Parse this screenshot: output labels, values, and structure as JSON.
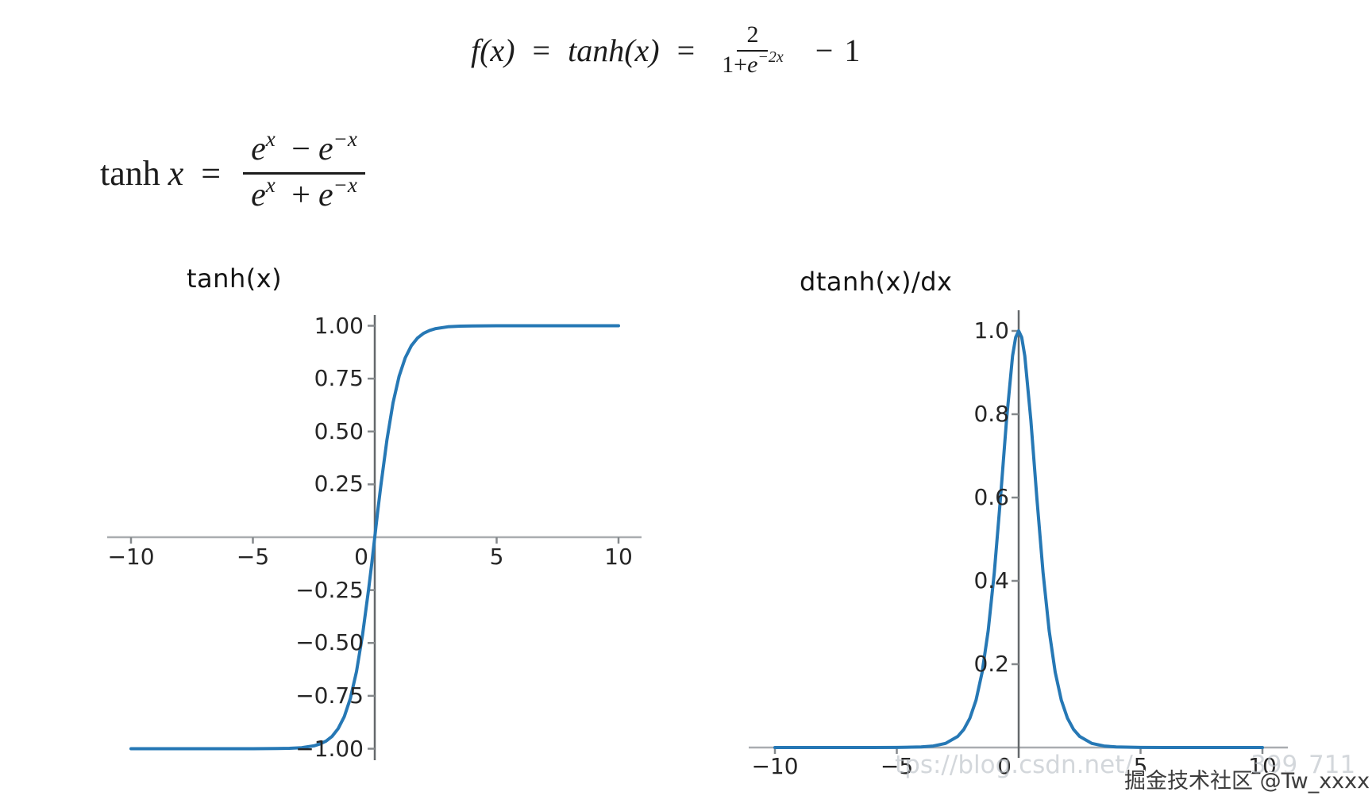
{
  "page": {
    "background": "#ffffff"
  },
  "formula1": {
    "lhs": "f(x)",
    "eq1": "=",
    "mid": "tanh(x)",
    "eq2": "=",
    "frac_num": "2",
    "frac_den_pre": "1+",
    "frac_den_e": "e",
    "frac_den_exp": "−2x",
    "tail_op": "−",
    "tail": "1"
  },
  "formula2": {
    "lhs": "tanh",
    "lhs_var": "x",
    "eq": "=",
    "num_e1": "e",
    "num_exp1": "x",
    "num_op": "−",
    "num_e2": "e",
    "num_exp2": "−x",
    "den_e1": "e",
    "den_exp1": "x",
    "den_op": "+",
    "den_e2": "e",
    "den_exp2": "−x"
  },
  "chart_data": [
    {
      "type": "line",
      "title": "tanh(x)",
      "xlabel": "",
      "ylabel": "",
      "xlim": [
        -11,
        11
      ],
      "ylim": [
        -1.06,
        1.05
      ],
      "grid": false,
      "legend": "none",
      "line_color": "#2678b5",
      "x_tick_values": [
        -10,
        -5,
        0,
        5,
        10
      ],
      "x_tick_labels": [
        "−10",
        "−5",
        "0",
        "5",
        "10"
      ],
      "y_tick_values": [
        1.0,
        0.75,
        0.5,
        0.25,
        -0.25,
        -0.5,
        -0.75,
        -1.0
      ],
      "y_tick_labels": [
        "1.00",
        "0.75",
        "0.50",
        "0.25",
        "−0.25",
        "−0.50",
        "−0.75",
        "−1.00"
      ],
      "series": [
        {
          "name": "tanh",
          "x": [
            -10,
            -9,
            -8,
            -7,
            -6,
            -5,
            -4,
            -3.5,
            -3,
            -2.5,
            -2.25,
            -2,
            -1.75,
            -1.5,
            -1.25,
            -1,
            -0.75,
            -0.5,
            -0.25,
            -0.125,
            0,
            0.125,
            0.25,
            0.5,
            0.75,
            1,
            1.25,
            1.5,
            1.75,
            2,
            2.25,
            2.5,
            3,
            3.5,
            4,
            5,
            6,
            7,
            8,
            9,
            10
          ],
          "y": [
            -1,
            -1,
            -1,
            -1,
            -1,
            -0.9999,
            -0.9993,
            -0.9982,
            -0.9951,
            -0.9866,
            -0.978,
            -0.964,
            -0.9414,
            -0.9051,
            -0.8483,
            -0.7616,
            -0.6351,
            -0.4621,
            -0.2449,
            -0.1244,
            0,
            0.1244,
            0.2449,
            0.4621,
            0.6351,
            0.7616,
            0.8483,
            0.9051,
            0.9414,
            0.964,
            0.978,
            0.9866,
            0.9951,
            0.9982,
            0.9993,
            0.9999,
            1,
            1,
            1,
            1,
            1
          ]
        }
      ]
    },
    {
      "type": "line",
      "title": "dtanh(x)/dx",
      "xlabel": "",
      "ylabel": "",
      "xlim": [
        -11,
        11
      ],
      "ylim": [
        -0.003,
        1.05
      ],
      "grid": false,
      "legend": "none",
      "line_color": "#2678b5",
      "x_tick_values": [
        -10,
        -5,
        0,
        5,
        10
      ],
      "x_tick_labels": [
        "−10",
        "−5",
        "0",
        "5",
        "10"
      ],
      "y_tick_values": [
        1.0,
        0.8,
        0.6,
        0.4,
        0.2
      ],
      "y_tick_labels": [
        "1.0",
        "0.8",
        "0.6",
        "0.4",
        "0.2"
      ],
      "series": [
        {
          "name": "dtanh/dx",
          "x": [
            -10,
            -9,
            -8,
            -7,
            -6,
            -5,
            -4,
            -3.5,
            -3,
            -2.5,
            -2.25,
            -2,
            -1.75,
            -1.5,
            -1.25,
            -1,
            -0.75,
            -0.5,
            -0.25,
            -0.125,
            0,
            0.125,
            0.25,
            0.5,
            0.75,
            1,
            1.25,
            1.5,
            1.75,
            2,
            2.25,
            2.5,
            3,
            3.5,
            4,
            5,
            6,
            7,
            8,
            9,
            10
          ],
          "y": [
            0,
            0,
            0,
            0,
            0,
            0.0002,
            0.0013,
            0.0036,
            0.0099,
            0.0266,
            0.0435,
            0.0707,
            0.1137,
            0.1807,
            0.2803,
            0.42,
            0.5966,
            0.7864,
            0.94,
            0.9845,
            1,
            0.9845,
            0.94,
            0.7864,
            0.5966,
            0.42,
            0.2803,
            0.1807,
            0.1137,
            0.0707,
            0.0435,
            0.0266,
            0.0099,
            0.0036,
            0.0013,
            0.0002,
            0,
            0,
            0,
            0,
            0
          ]
        }
      ]
    }
  ],
  "watermarks": {
    "url_fragment_left": "tps://blog.csdn.net/",
    "url_fragment_mid": "399",
    "url_fragment_right": "711",
    "brand": "掘金技术社区 @Tw_xxxx"
  }
}
